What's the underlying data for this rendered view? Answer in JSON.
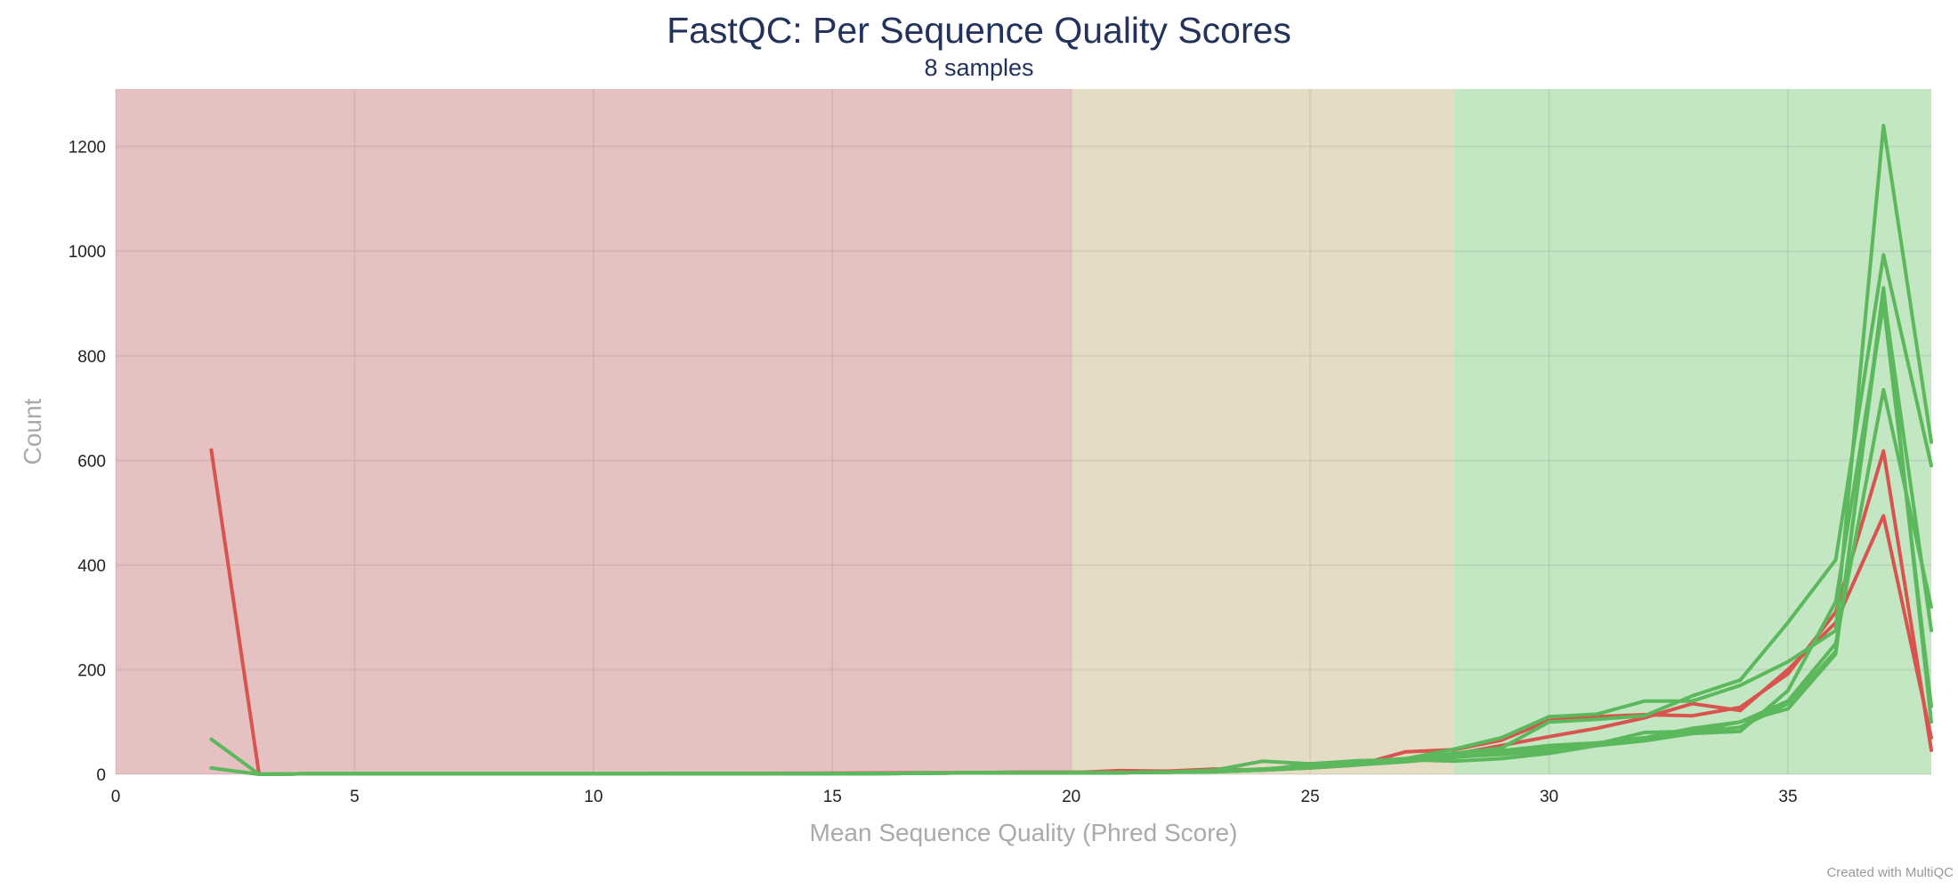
{
  "chart_data": {
    "type": "line",
    "title": "FastQC: Per Sequence Quality Scores",
    "subtitle": "8 samples",
    "xlabel": "Mean Sequence Quality (Phred Score)",
    "ylabel": "Count",
    "xlim": [
      0,
      38
    ],
    "ylim": [
      0,
      1310
    ],
    "x_ticks": [
      0,
      5,
      10,
      15,
      20,
      25,
      30,
      35
    ],
    "y_ticks": [
      0,
      200,
      400,
      600,
      800,
      1000,
      1200
    ],
    "grid": true,
    "bands": [
      {
        "from": 0,
        "to": 20,
        "color": "#e5c1c2"
      },
      {
        "from": 20,
        "to": 28,
        "color": "#e5dcc5"
      },
      {
        "from": 28,
        "to": 38,
        "color": "#c3e6c3"
      }
    ],
    "series": [
      {
        "color": "#d9534f",
        "x": [
          2,
          3,
          4,
          10,
          15,
          17,
          18,
          19,
          20,
          21,
          22,
          23,
          24,
          25,
          26,
          27,
          28,
          29,
          30,
          31,
          32,
          33,
          34,
          35,
          36,
          37,
          38
        ],
        "y": [
          620,
          0,
          1,
          1,
          1,
          2,
          3,
          3,
          3,
          7,
          6,
          10,
          8,
          12,
          18,
          43,
          47,
          65,
          103,
          110,
          114,
          112,
          128,
          192,
          310,
          618,
          46
        ]
      },
      {
        "color": "#d9534f",
        "x": [
          3,
          4,
          10,
          15,
          17,
          18,
          19,
          20,
          21,
          22,
          23,
          24,
          25,
          26,
          27,
          28,
          29,
          30,
          31,
          32,
          33,
          34,
          35,
          36,
          37,
          38
        ],
        "y": [
          0,
          1,
          1,
          2,
          3,
          3,
          4,
          4,
          3,
          5,
          6,
          9,
          14,
          20,
          30,
          38,
          55,
          72,
          88,
          108,
          135,
          122,
          200,
          290,
          494,
          70
        ]
      },
      {
        "color": "#5cb85c",
        "x": [
          2,
          3,
          4,
          10,
          15,
          17,
          18,
          19,
          20,
          21,
          22,
          23,
          24,
          25,
          26,
          27,
          28,
          29,
          30,
          31,
          32,
          33,
          34,
          35,
          36,
          37,
          38
        ],
        "y": [
          67,
          0,
          1,
          1,
          1,
          2,
          3,
          3,
          3,
          3,
          4,
          8,
          25,
          20,
          24,
          30,
          48,
          70,
          110,
          115,
          140,
          140,
          170,
          215,
          275,
          1240,
          635
        ]
      },
      {
        "color": "#5cb85c",
        "x": [
          2,
          3,
          4,
          10,
          15,
          17,
          18,
          19,
          20,
          21,
          22,
          23,
          24,
          25,
          26,
          27,
          28,
          29,
          30,
          31,
          32,
          33,
          34,
          35,
          36,
          37,
          38
        ],
        "y": [
          12,
          0,
          1,
          1,
          1,
          2,
          3,
          3,
          3,
          3,
          4,
          6,
          10,
          16,
          22,
          28,
          40,
          50,
          100,
          105,
          112,
          150,
          180,
          290,
          410,
          993,
          590
        ]
      },
      {
        "color": "#5cb85c",
        "x": [
          3,
          4,
          10,
          15,
          17,
          18,
          19,
          20,
          21,
          22,
          23,
          24,
          25,
          26,
          27,
          28,
          29,
          30,
          31,
          32,
          33,
          34,
          35,
          36,
          37,
          38
        ],
        "y": [
          0,
          1,
          1,
          1,
          2,
          3,
          3,
          3,
          3,
          4,
          5,
          8,
          12,
          18,
          24,
          32,
          42,
          52,
          58,
          66,
          80,
          90,
          135,
          235,
          918,
          275
        ]
      },
      {
        "color": "#5cb85c",
        "x": [
          3,
          4,
          10,
          15,
          17,
          18,
          19,
          20,
          21,
          22,
          23,
          24,
          25,
          26,
          27,
          28,
          29,
          30,
          31,
          32,
          33,
          34,
          35,
          36,
          37,
          38
        ],
        "y": [
          0,
          1,
          1,
          1,
          2,
          3,
          3,
          3,
          3,
          4,
          6,
          10,
          14,
          20,
          26,
          35,
          45,
          55,
          60,
          70,
          88,
          100,
          140,
          250,
          735,
          320
        ]
      },
      {
        "color": "#5cb85c",
        "x": [
          3,
          4,
          10,
          15,
          17,
          18,
          19,
          20,
          21,
          22,
          23,
          24,
          25,
          26,
          27,
          28,
          29,
          30,
          31,
          32,
          33,
          34,
          35,
          36,
          37,
          38
        ],
        "y": [
          0,
          1,
          1,
          1,
          2,
          3,
          3,
          3,
          3,
          4,
          5,
          8,
          20,
          26,
          28,
          25,
          30,
          40,
          55,
          64,
          78,
          82,
          160,
          330,
          900,
          130
        ]
      },
      {
        "color": "#5cb85c",
        "x": [
          3,
          4,
          10,
          15,
          17,
          18,
          19,
          20,
          21,
          22,
          23,
          24,
          25,
          26,
          27,
          28,
          29,
          30,
          31,
          32,
          33,
          34,
          35,
          36,
          37,
          38
        ],
        "y": [
          0,
          1,
          1,
          1,
          2,
          3,
          3,
          3,
          3,
          4,
          5,
          9,
          15,
          20,
          26,
          33,
          38,
          45,
          58,
          80,
          82,
          100,
          125,
          230,
          930,
          100
        ]
      }
    ]
  },
  "footer": {
    "credit": "Created with MultiQC"
  }
}
